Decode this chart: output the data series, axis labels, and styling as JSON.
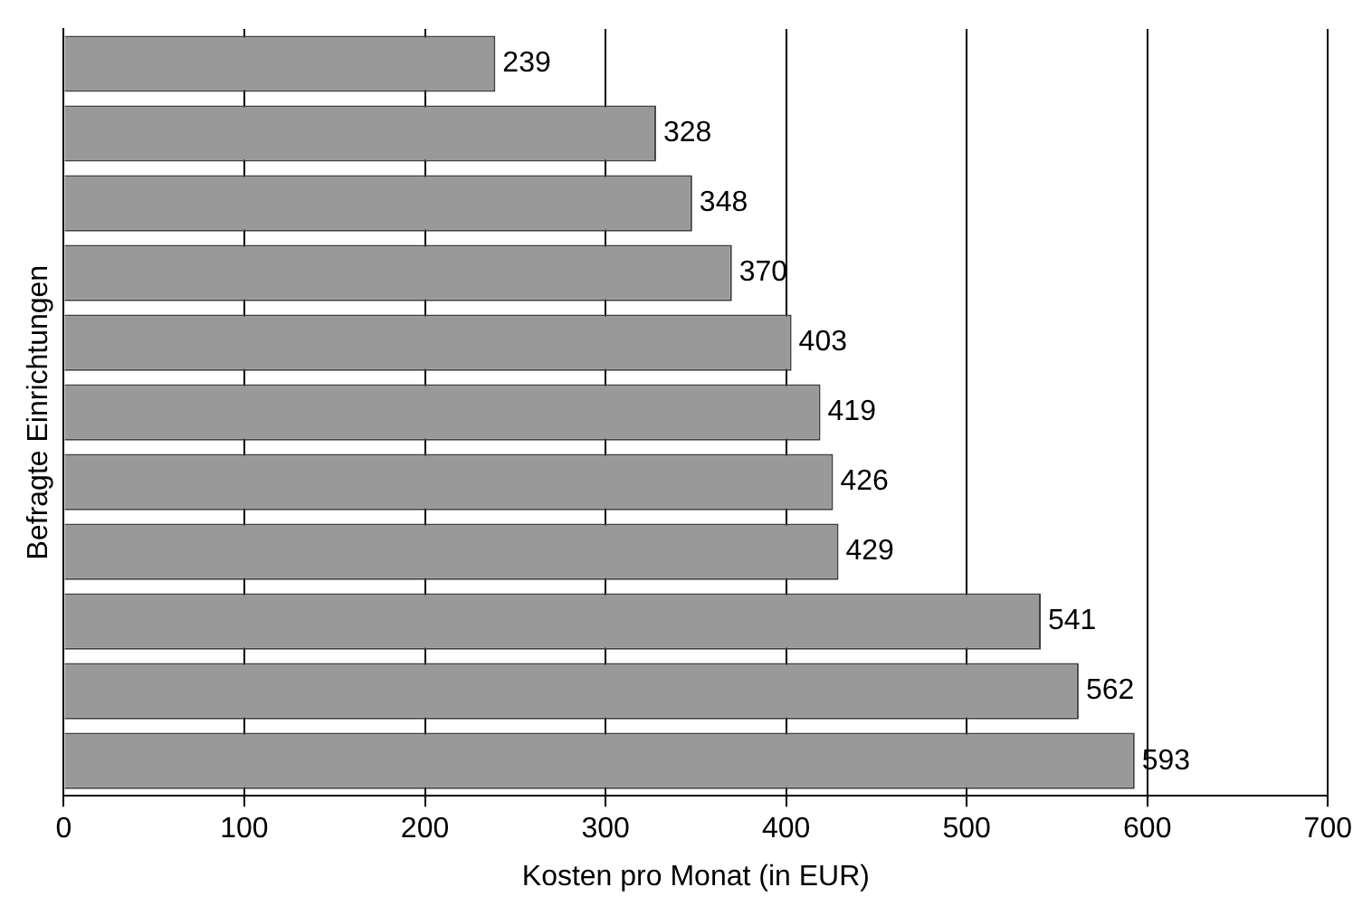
{
  "chart_data": {
    "type": "bar",
    "orientation": "horizontal",
    "xlabel": "Kosten pro Monat (in EUR)",
    "ylabel": "Befragte Einrichtungen",
    "categories": [
      null,
      null,
      null,
      null,
      null,
      null,
      null,
      null,
      null,
      null,
      null
    ],
    "values": [
      239,
      328,
      348,
      370,
      403,
      419,
      426,
      429,
      541,
      562,
      593
    ],
    "color": "#999999",
    "xlim": [
      0,
      700
    ],
    "xticks": [
      0,
      100,
      200,
      300,
      400,
      500,
      600,
      700
    ],
    "grid": "x",
    "data_labels": true,
    "tick_labels": "x"
  }
}
